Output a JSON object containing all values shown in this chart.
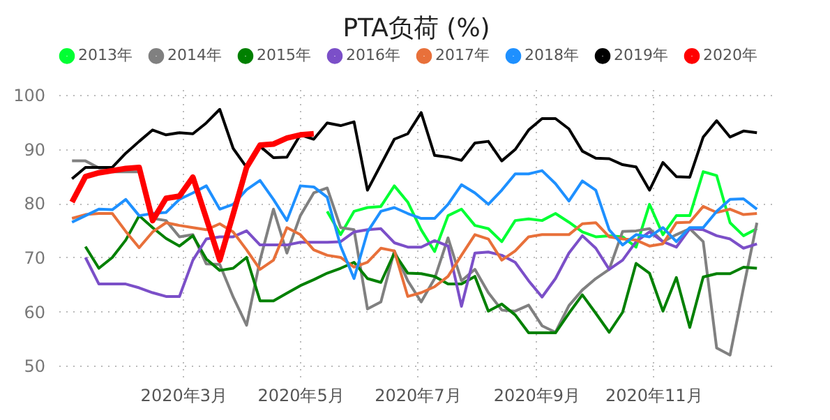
{
  "chart_data": {
    "type": "line",
    "title": "PTA负荷 (%)",
    "x": [
      "2020-01-03",
      "2020-01-10",
      "2020-01-17",
      "2020-01-24",
      "2020-01-31",
      "2020-02-07",
      "2020-02-14",
      "2020-02-21",
      "2020-02-28",
      "2020-03-06",
      "2020-03-13",
      "2020-03-20",
      "2020-03-27",
      "2020-04-03",
      "2020-04-10",
      "2020-04-17",
      "2020-04-24",
      "2020-05-01",
      "2020-05-08",
      "2020-05-15",
      "2020-05-22",
      "2020-05-29",
      "2020-06-05",
      "2020-06-12",
      "2020-06-19",
      "2020-06-26",
      "2020-07-03",
      "2020-07-10",
      "2020-07-17",
      "2020-07-24",
      "2020-07-31",
      "2020-08-07",
      "2020-08-14",
      "2020-08-21",
      "2020-08-28",
      "2020-09-04",
      "2020-09-11",
      "2020-09-18",
      "2020-09-25",
      "2020-10-02",
      "2020-10-09",
      "2020-10-16",
      "2020-10-23",
      "2020-10-30",
      "2020-11-06",
      "2020-11-13",
      "2020-11-20",
      "2020-11-27",
      "2020-12-04",
      "2020-12-11",
      "2020-12-18",
      "2020-12-25"
    ],
    "series": [
      {
        "name": "2013年",
        "color": "#00ff33",
        "values": [
          null,
          null,
          null,
          null,
          null,
          null,
          null,
          null,
          null,
          null,
          null,
          null,
          null,
          null,
          null,
          null,
          null,
          null,
          null,
          78.5,
          74.2,
          78.5,
          79.2,
          79.4,
          83.2,
          80.2,
          75.1,
          71.1,
          77.7,
          78.9,
          75.9,
          75.3,
          72.9,
          76.8,
          77.1,
          76.8,
          78.1,
          76.5,
          74.7,
          73.8,
          74.0,
          73.8,
          71.9,
          79.8,
          74.2,
          77.7,
          77.7,
          85.8,
          85.1,
          76.4,
          74.0,
          75.3
        ]
      },
      {
        "name": "2014年",
        "color": "#808080",
        "values": [
          87.8,
          87.8,
          86.5,
          85.8,
          85.8,
          85.8,
          77.2,
          76.8,
          73.8,
          74.2,
          68.8,
          68.7,
          62.7,
          57.5,
          69.5,
          78.9,
          70.8,
          77.7,
          81.9,
          82.8,
          75.5,
          75.1,
          60.5,
          61.8,
          71.2,
          65.7,
          61.8,
          66.1,
          73.6,
          65.7,
          67.8,
          63.5,
          60.3,
          60.1,
          61.2,
          57.4,
          56.2,
          61.1,
          64.0,
          66.1,
          67.8,
          74.8,
          74.9,
          75.3,
          72.9,
          74.2,
          75.3,
          72.9,
          53.3,
          52.0,
          64.4,
          76.4
        ]
      },
      {
        "name": "2015年",
        "color": "#008000",
        "values": [
          null,
          72.0,
          68.0,
          70.0,
          73.2,
          77.7,
          75.5,
          73.5,
          72.1,
          74.0,
          69.7,
          67.6,
          68.0,
          70.0,
          62.0,
          62.0,
          63.4,
          64.8,
          65.9,
          67.1,
          68.0,
          69.1,
          66.1,
          65.4,
          70.8,
          67.1,
          67.0,
          66.5,
          65.1,
          65.1,
          66.5,
          60.1,
          61.4,
          59.4,
          56.1,
          56.1,
          56.1,
          59.7,
          63.1,
          59.7,
          56.2,
          59.9,
          68.9,
          67.1,
          60.1,
          66.3,
          57.1,
          66.4,
          67.0,
          67.0,
          68.2,
          68.0
        ]
      },
      {
        "name": "2016年",
        "color": "#7b4fc8",
        "values": [
          null,
          70.0,
          65.1,
          65.1,
          65.1,
          64.4,
          63.5,
          62.8,
          62.8,
          69.5,
          73.4,
          73.8,
          73.8,
          74.9,
          72.3,
          72.3,
          72.3,
          72.8,
          72.8,
          72.8,
          72.9,
          74.7,
          75.1,
          75.3,
          72.7,
          71.9,
          71.9,
          73.1,
          72.1,
          61.0,
          70.8,
          71.0,
          70.4,
          69.1,
          65.7,
          62.7,
          66.1,
          70.8,
          74.0,
          71.7,
          67.8,
          69.5,
          72.9,
          74.7,
          72.9,
          71.9,
          75.3,
          75.1,
          74.0,
          73.4,
          71.7,
          72.5
        ]
      },
      {
        "name": "2017年",
        "color": "#e8703a",
        "values": [
          77.2,
          77.9,
          78.1,
          78.1,
          74.8,
          71.8,
          74.7,
          76.4,
          75.9,
          75.5,
          75.1,
          76.2,
          74.7,
          71.4,
          67.8,
          69.5,
          75.5,
          74.2,
          71.4,
          70.4,
          70.0,
          68.2,
          69.1,
          71.7,
          71.2,
          62.8,
          63.5,
          64.6,
          66.5,
          70.4,
          74.2,
          73.4,
          69.5,
          71.2,
          73.8,
          74.2,
          74.2,
          74.2,
          76.2,
          76.4,
          73.8,
          73.4,
          73.2,
          72.1,
          72.5,
          76.4,
          76.5,
          79.4,
          78.3,
          78.9,
          77.9,
          78.1
        ]
      },
      {
        "name": "2018年",
        "color": "#1e90ff",
        "values": [
          76.5,
          77.7,
          78.9,
          78.8,
          80.7,
          77.7,
          78.1,
          78.3,
          80.7,
          81.9,
          83.2,
          78.9,
          79.8,
          82.5,
          84.2,
          80.7,
          76.8,
          83.2,
          83.0,
          81.1,
          72.1,
          66.1,
          74.7,
          78.5,
          79.2,
          78.1,
          77.2,
          77.2,
          79.8,
          83.4,
          81.9,
          79.8,
          82.4,
          85.4,
          85.4,
          86.0,
          83.6,
          80.4,
          84.1,
          82.4,
          75.1,
          72.3,
          74.2,
          73.8,
          75.5,
          72.9,
          75.5,
          75.5,
          78.5,
          80.7,
          80.8,
          78.9
        ]
      },
      {
        "name": "2019年",
        "color": "#000000",
        "values": [
          84.5,
          86.6,
          86.6,
          86.6,
          89.2,
          91.4,
          93.5,
          92.6,
          93.0,
          92.8,
          94.8,
          97.3,
          90.1,
          86.6,
          90.5,
          88.4,
          88.5,
          92.6,
          91.8,
          94.8,
          94.3,
          95.0,
          82.4,
          87.1,
          91.8,
          92.8,
          96.7,
          88.8,
          88.5,
          87.9,
          91.1,
          91.4,
          87.8,
          89.9,
          93.5,
          95.6,
          95.6,
          93.7,
          89.6,
          88.3,
          88.2,
          87.1,
          86.7,
          82.4,
          87.5,
          84.9,
          84.8,
          92.2,
          95.2,
          92.2,
          93.3,
          93.0
        ]
      },
      {
        "name": "2020年",
        "color": "#ff0000",
        "values": [
          80.2,
          84.9,
          85.6,
          86.0,
          86.4,
          86.6,
          76.8,
          80.9,
          81.3,
          84.8,
          77.2,
          69.5,
          78.0,
          86.6,
          90.7,
          90.9,
          92.0,
          92.6,
          92.8,
          null,
          null,
          null,
          null,
          null,
          null,
          null,
          null,
          null,
          null,
          null,
          null,
          null,
          null,
          null,
          null,
          null,
          null,
          null,
          null,
          null,
          null,
          null,
          null,
          null,
          null,
          null,
          null,
          null,
          null,
          null,
          null,
          null
        ]
      }
    ],
    "xlim": [
      "2019-12-27",
      "2021-01-03"
    ],
    "xticks": [
      {
        "value": "2020-03-01",
        "label": "2020年3月"
      },
      {
        "value": "2020-05-01",
        "label": "2020年5月"
      },
      {
        "value": "2020-07-01",
        "label": "2020年7月"
      },
      {
        "value": "2020-09-01",
        "label": "2020年9月"
      },
      {
        "value": "2020-11-01",
        "label": "2020年11月"
      }
    ],
    "ylim": [
      48,
      101
    ],
    "yticks": [
      50,
      60,
      70,
      80,
      90,
      100
    ],
    "grid": true,
    "legend": "top",
    "marker": "none",
    "line_style": "solid"
  }
}
